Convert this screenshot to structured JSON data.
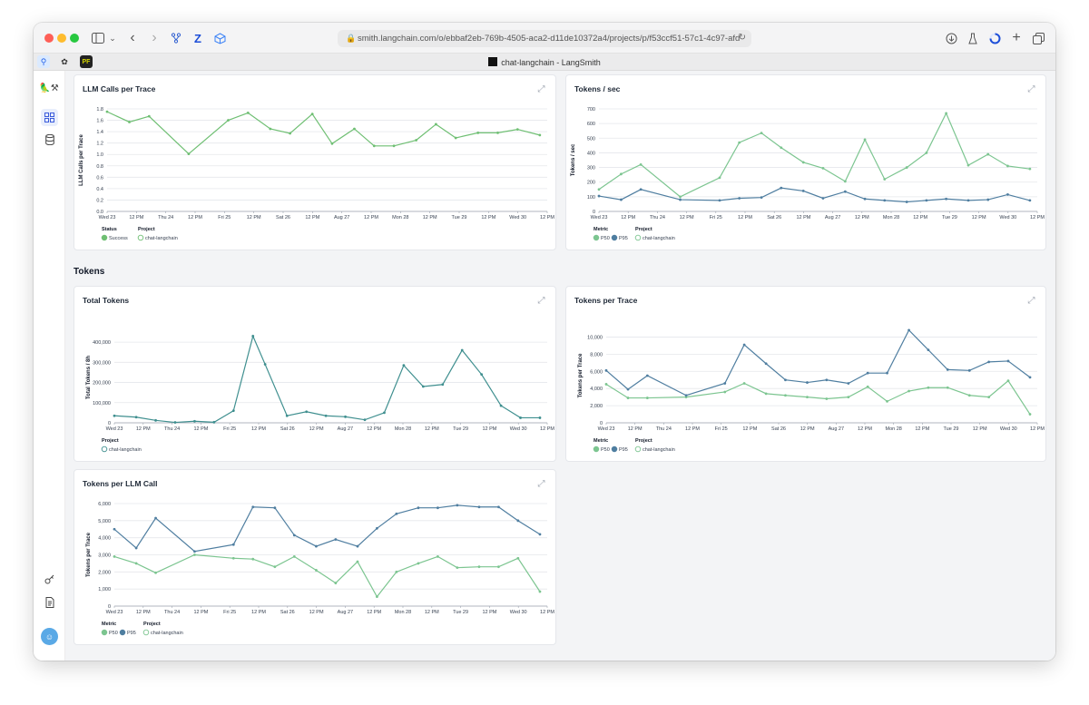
{
  "browser": {
    "url": "smith.langchain.com/o/ebbaf2eb-769b-4505-aca2-d11de10372a4/projects/p/f53ccf51-57c1-4c97-afd",
    "tab_title": "chat-langchain - LangSmith"
  },
  "colors": {
    "p50": "#7cc590",
    "p95": "#4f7ea0",
    "success": "#6fbf73",
    "project": "#5f9ea0",
    "grid": "#e5e7eb"
  },
  "section": {
    "tokens_title": "Tokens"
  },
  "x_ticks": [
    "Wed 23",
    "12 PM",
    "Thu 24",
    "12 PM",
    "Fri 25",
    "12 PM",
    "Sat 26",
    "12 PM",
    "Aug 27",
    "12 PM",
    "Mon 28",
    "12 PM",
    "Tue 29",
    "12 PM",
    "Wed 30",
    "12 PM"
  ],
  "charts": [
    {
      "id": "llm_calls",
      "title": "LLM Calls per Trace",
      "ylabel": "LLM Calls per Trace",
      "yticks": [
        "0.0",
        "0.2",
        "0.4",
        "0.6",
        "0.8",
        "1.0",
        "1.2",
        "1.4",
        "1.6",
        "1.8"
      ],
      "legend": [
        {
          "heading": "Status",
          "items": [
            {
              "label": "Success",
              "color": "#6fbf73",
              "filled": true
            }
          ]
        },
        {
          "heading": "Project",
          "items": [
            {
              "label": "chat-langchain",
              "color": "#6fbf73",
              "filled": false
            }
          ]
        }
      ]
    },
    {
      "id": "tokens_sec",
      "title": "Tokens / sec",
      "ylabel": "Tokens / sec",
      "yticks": [
        "0",
        "100",
        "200",
        "300",
        "400",
        "500",
        "600",
        "700"
      ],
      "legend": [
        {
          "heading": "Metric",
          "items": [
            {
              "label": "P50",
              "color": "#7cc590",
              "filled": true
            },
            {
              "label": "P95",
              "color": "#4f7ea0",
              "filled": true
            }
          ]
        },
        {
          "heading": "Project",
          "items": [
            {
              "label": "chat-langchain",
              "color": "#7cc590",
              "filled": false
            }
          ]
        }
      ]
    },
    {
      "id": "total_tokens",
      "title": "Total Tokens",
      "ylabel": "Total Tokens / 8h",
      "yticks": [
        "0",
        "100,000",
        "200,000",
        "300,000",
        "400,000"
      ],
      "legend": [
        {
          "heading": "Project",
          "items": [
            {
              "label": "chat-langchain",
              "color": "#3f8f8f",
              "filled": false
            }
          ]
        }
      ]
    },
    {
      "id": "tokens_trace",
      "title": "Tokens per Trace",
      "ylabel": "Tokens per Trace",
      "yticks": [
        "0",
        "2,000",
        "4,000",
        "6,000",
        "8,000",
        "10,000"
      ],
      "legend": [
        {
          "heading": "Metric",
          "items": [
            {
              "label": "P50",
              "color": "#7cc590",
              "filled": true
            },
            {
              "label": "P95",
              "color": "#4f7ea0",
              "filled": true
            }
          ]
        },
        {
          "heading": "Project",
          "items": [
            {
              "label": "chat-langchain",
              "color": "#7cc590",
              "filled": false
            }
          ]
        }
      ]
    },
    {
      "id": "tokens_llm",
      "title": "Tokens per LLM Call",
      "ylabel": "Tokens per Trace",
      "yticks": [
        "0",
        "1,000",
        "2,000",
        "3,000",
        "4,000",
        "5,000",
        "6,000"
      ],
      "legend": [
        {
          "heading": "Metric",
          "items": [
            {
              "label": "P50",
              "color": "#7cc590",
              "filled": true
            },
            {
              "label": "P95",
              "color": "#4f7ea0",
              "filled": true
            }
          ]
        },
        {
          "heading": "Project",
          "items": [
            {
              "label": "chat-langchain",
              "color": "#7cc590",
              "filled": false
            }
          ]
        }
      ]
    }
  ],
  "chart_data": [
    {
      "type": "line",
      "title": "LLM Calls per Trace",
      "ylabel": "LLM Calls per Trace",
      "ylim": [
        0,
        1.8
      ],
      "x": [
        0.0,
        0.09,
        0.17,
        0.33,
        0.49,
        0.57,
        0.66,
        0.74,
        0.83,
        0.91,
        1.0,
        1.08,
        1.16,
        1.25,
        1.33,
        1.41,
        1.5,
        1.58,
        1.66,
        1.75
      ],
      "series": [
        {
          "name": "Success",
          "color": "#6fbf73",
          "values": [
            1.75,
            1.57,
            1.67,
            1.01,
            1.6,
            1.73,
            1.45,
            1.37,
            1.71,
            1.19,
            1.45,
            1.15,
            1.15,
            1.25,
            1.53,
            1.29,
            1.38,
            1.38,
            1.44,
            1.34
          ]
        }
      ]
    },
    {
      "type": "line",
      "title": "Tokens / sec",
      "ylabel": "Tokens / sec",
      "ylim": [
        0,
        700
      ],
      "x": [
        0.0,
        0.09,
        0.17,
        0.33,
        0.49,
        0.57,
        0.66,
        0.74,
        0.83,
        0.91,
        1.0,
        1.08,
        1.16,
        1.25,
        1.33,
        1.41,
        1.5,
        1.58,
        1.66,
        1.75
      ],
      "series": [
        {
          "name": "P50",
          "color": "#7cc590",
          "values": [
            150,
            255,
            320,
            100,
            230,
            470,
            535,
            435,
            335,
            295,
            205,
            490,
            220,
            300,
            400,
            670,
            315,
            390,
            310,
            290
          ]
        },
        {
          "name": "P95",
          "color": "#4f7ea0",
          "values": [
            105,
            80,
            150,
            80,
            75,
            90,
            95,
            160,
            140,
            90,
            135,
            85,
            75,
            65,
            75,
            85,
            75,
            80,
            115,
            75
          ]
        }
      ]
    },
    {
      "type": "line",
      "title": "Total Tokens",
      "ylabel": "Total Tokens / 8h",
      "ylim": [
        0,
        450000
      ],
      "x": [
        0.0,
        0.09,
        0.17,
        0.25,
        0.33,
        0.41,
        0.49,
        0.57,
        0.62,
        0.71,
        0.79,
        0.87,
        0.95,
        1.03,
        1.11,
        1.19,
        1.27,
        1.35,
        1.43,
        1.51,
        1.59,
        1.67,
        1.75
      ],
      "series": [
        {
          "name": "chat-langchain",
          "color": "#3f8f8f",
          "values": [
            35000,
            28000,
            12000,
            2000,
            8000,
            3000,
            60000,
            430000,
            290000,
            35000,
            55000,
            35000,
            30000,
            15000,
            50000,
            285000,
            180000,
            190000,
            360000,
            240000,
            85000,
            25000,
            25000
          ]
        }
      ]
    },
    {
      "type": "line",
      "title": "Tokens per Trace",
      "ylabel": "Tokens per Trace",
      "ylim": [
        0,
        11000
      ],
      "x": [
        0.0,
        0.09,
        0.17,
        0.33,
        0.49,
        0.57,
        0.66,
        0.74,
        0.83,
        0.91,
        1.0,
        1.08,
        1.16,
        1.25,
        1.33,
        1.41,
        1.5,
        1.58,
        1.66,
        1.75
      ],
      "series": [
        {
          "name": "P50",
          "color": "#7cc590",
          "values": [
            4500,
            2900,
            2900,
            3000,
            3600,
            4600,
            3400,
            3200,
            3000,
            2800,
            3000,
            4200,
            2500,
            3700,
            4100,
            4100,
            3200,
            3000,
            4900,
            1000
          ]
        },
        {
          "name": "P95",
          "color": "#4f7ea0",
          "values": [
            6100,
            3900,
            5500,
            3200,
            4600,
            9100,
            6900,
            5000,
            4700,
            5000,
            4600,
            5800,
            5800,
            10800,
            8500,
            6200,
            6100,
            7100,
            7200,
            5300
          ]
        }
      ]
    },
    {
      "type": "line",
      "title": "Tokens per LLM Call",
      "ylabel": "Tokens per Trace",
      "ylim": [
        0,
        6000
      ],
      "x": [
        0.0,
        0.09,
        0.17,
        0.33,
        0.49,
        0.57,
        0.66,
        0.74,
        0.83,
        0.91,
        1.0,
        1.08,
        1.16,
        1.25,
        1.33,
        1.41,
        1.5,
        1.58,
        1.66,
        1.75
      ],
      "series": [
        {
          "name": "P50",
          "color": "#7cc590",
          "values": [
            2900,
            2500,
            1950,
            3000,
            2800,
            2750,
            2300,
            2900,
            2100,
            1350,
            2600,
            550,
            2000,
            2500,
            2900,
            2250,
            2300,
            2300,
            2800,
            850
          ]
        },
        {
          "name": "P95",
          "color": "#4f7ea0",
          "values": [
            4500,
            3400,
            5150,
            3200,
            3600,
            5800,
            5750,
            4150,
            3500,
            3900,
            3500,
            4550,
            5400,
            5750,
            5750,
            5900,
            5800,
            5800,
            5000,
            4200
          ]
        }
      ]
    }
  ]
}
